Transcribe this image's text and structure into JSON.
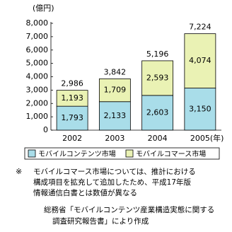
{
  "chart_data": {
    "type": "stacked-bar",
    "y_label": "(億円)",
    "x_label": "(年)",
    "categories": [
      "2002",
      "2003",
      "2004",
      "2005"
    ],
    "series": [
      {
        "name": "モバイルコンテンツ市場",
        "color": "#a9dde9",
        "values": [
          1793,
          2133,
          2603,
          3150
        ],
        "value_labels": [
          "1,793",
          "2,133",
          "2,603",
          "3,150"
        ]
      },
      {
        "name": "モバイルコマース市場",
        "color": "#eaf2b4",
        "values": [
          1193,
          1709,
          2593,
          4074
        ],
        "value_labels": [
          "1,193",
          "1,709",
          "2,593",
          "4,074"
        ]
      }
    ],
    "totals": {
      "values": [
        2986,
        3842,
        5196,
        7224
      ],
      "value_labels": [
        "2,986",
        "3,842",
        "5,196",
        "7,224"
      ]
    },
    "ylim": [
      0,
      8000
    ],
    "yticks": [
      0,
      {
        "value": 1000,
        "label": "1,000"
      },
      {
        "value": 2000,
        "label": "2,000"
      },
      {
        "value": 3000,
        "label": "3,000"
      },
      {
        "value": 4000,
        "label": "4,000"
      },
      {
        "value": 5000,
        "label": "5,000"
      },
      {
        "value": 6000,
        "label": "6,000"
      },
      {
        "value": 7000,
        "label": "7,000"
      },
      {
        "value": 8000,
        "label": "8,000"
      }
    ],
    "notes": [
      "※",
      "モバイルコマース市場については、推計における",
      "構成項目を拡充して追加したため、平成17年版",
      "情報通信白書とは数値が異なる"
    ],
    "source": [
      "総務省「モバイルコンテンツ産業構造実態に関する",
      "調査研究報告書」により作成"
    ]
  }
}
